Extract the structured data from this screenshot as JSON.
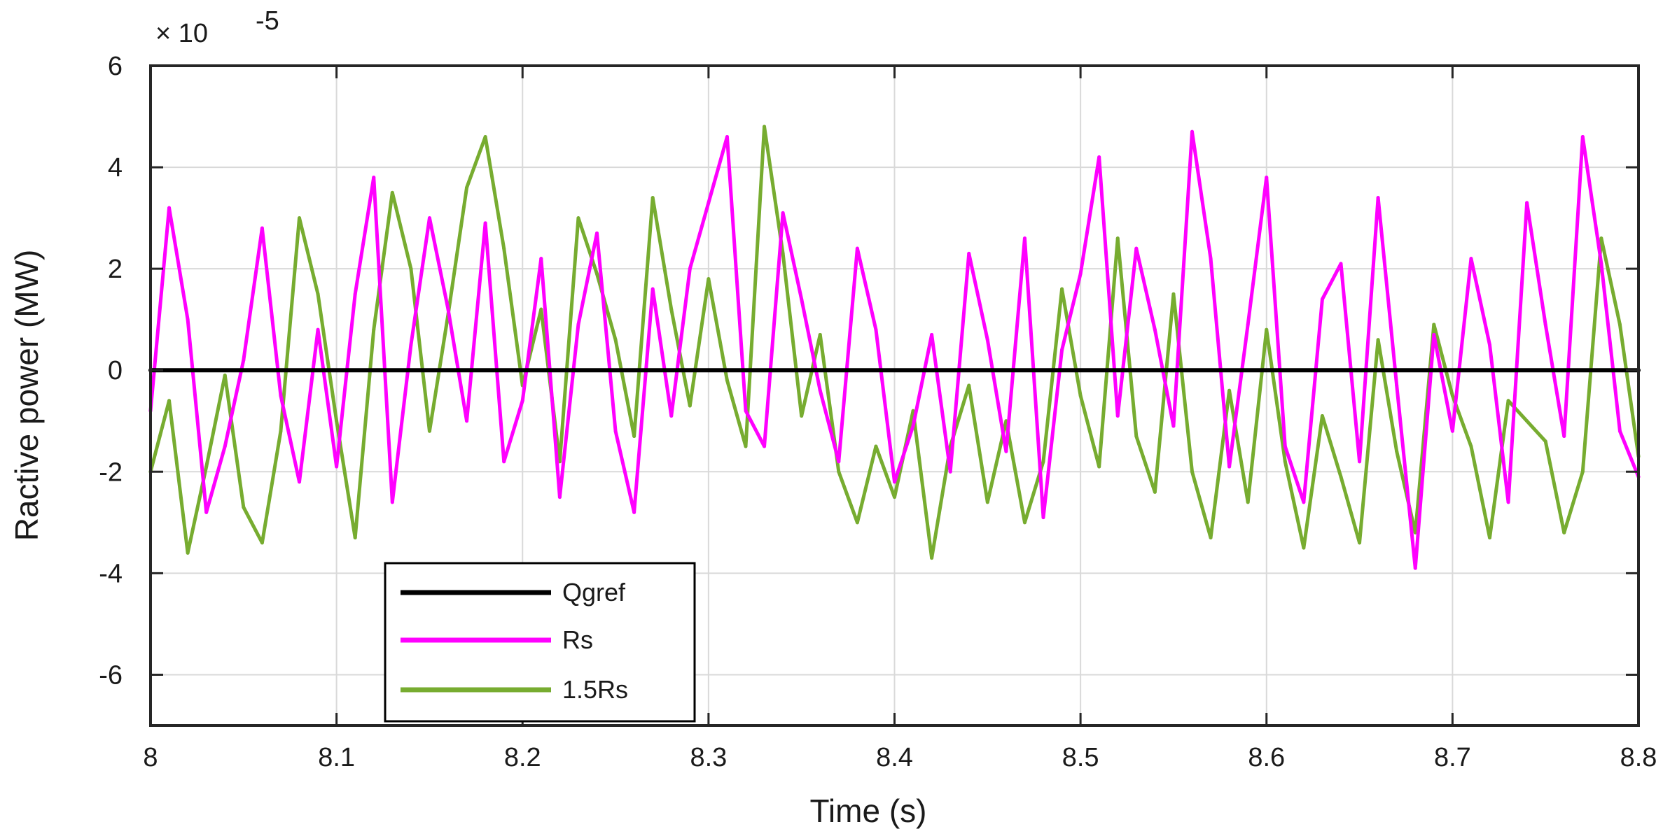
{
  "chart_data": {
    "type": "line",
    "title": "",
    "xlabel": "Time (s)",
    "ylabel": "Ractive power (MW)",
    "exponent_label": {
      "base": "× 10",
      "power": "-5"
    },
    "xlim": [
      8,
      8.8
    ],
    "ylim": [
      -7,
      6
    ],
    "xticks": [
      8,
      8.1,
      8.2,
      8.3,
      8.4,
      8.5,
      8.6,
      8.7,
      8.8
    ],
    "xtick_labels": [
      "8",
      "8.1",
      "8.2",
      "8.3",
      "8.4",
      "8.5",
      "8.6",
      "8.7",
      "8.8"
    ],
    "yticks": [
      -6,
      -4,
      -2,
      0,
      2,
      4,
      6
    ],
    "ytick_labels": [
      "-6",
      "-4",
      "-2",
      "0",
      "2",
      "4",
      "6"
    ],
    "grid": true,
    "legend_position": "bottom-left",
    "series": [
      {
        "name": "Qgref",
        "color": "#000000",
        "x": [
          8,
          8.8
        ],
        "values": [
          0,
          0
        ]
      },
      {
        "name": "Rs",
        "color": "#ff00ff",
        "x": [
          8,
          8.01,
          8.02,
          8.03,
          8.04,
          8.05,
          8.06,
          8.07,
          8.08,
          8.09,
          8.1,
          8.11,
          8.12,
          8.13,
          8.14,
          8.15,
          8.16,
          8.17,
          8.18,
          8.19,
          8.2,
          8.21,
          8.22,
          8.23,
          8.24,
          8.25,
          8.26,
          8.27,
          8.28,
          8.29,
          8.3,
          8.31,
          8.32,
          8.33,
          8.34,
          8.35,
          8.36,
          8.37,
          8.38,
          8.39,
          8.4,
          8.41,
          8.42,
          8.43,
          8.44,
          8.45,
          8.46,
          8.47,
          8.48,
          8.49,
          8.5,
          8.51,
          8.52,
          8.53,
          8.54,
          8.55,
          8.56,
          8.57,
          8.58,
          8.59,
          8.6,
          8.61,
          8.62,
          8.63,
          8.64,
          8.65,
          8.66,
          8.67,
          8.68,
          8.69,
          8.7,
          8.71,
          8.72,
          8.73,
          8.74,
          8.75,
          8.76,
          8.77,
          8.78,
          8.79,
          8.8
        ],
        "values": [
          -0.8,
          3.2,
          1.0,
          -2.8,
          -1.5,
          0.2,
          2.8,
          -0.5,
          -2.2,
          0.8,
          -1.9,
          1.5,
          3.8,
          -2.6,
          0.5,
          3.0,
          1.2,
          -1.0,
          2.9,
          -1.8,
          -0.6,
          2.2,
          -2.5,
          0.9,
          2.7,
          -1.2,
          -2.8,
          1.6,
          -0.9,
          2.0,
          3.3,
          4.6,
          -0.8,
          -1.5,
          3.1,
          1.4,
          -0.4,
          -1.8,
          2.4,
          0.8,
          -2.2,
          -1.1,
          0.7,
          -2.0,
          2.3,
          0.6,
          -1.6,
          2.6,
          -2.9,
          0.4,
          1.9,
          4.2,
          -0.9,
          2.4,
          0.8,
          -1.1,
          4.7,
          2.2,
          -1.9,
          0.9,
          3.8,
          -1.5,
          -2.6,
          1.4,
          2.1,
          -1.8,
          3.4,
          -0.3,
          -3.9,
          0.7,
          -1.2,
          2.2,
          0.5,
          -2.6,
          3.3,
          0.9,
          -1.3,
          4.6,
          2.1,
          -1.2,
          -2.1
        ]
      },
      {
        "name": "1.5Rs",
        "color": "#77ac30",
        "x": [
          8,
          8.01,
          8.02,
          8.03,
          8.04,
          8.05,
          8.06,
          8.07,
          8.08,
          8.09,
          8.1,
          8.11,
          8.12,
          8.13,
          8.14,
          8.15,
          8.16,
          8.17,
          8.18,
          8.19,
          8.2,
          8.21,
          8.22,
          8.23,
          8.24,
          8.25,
          8.26,
          8.27,
          8.28,
          8.29,
          8.3,
          8.31,
          8.32,
          8.33,
          8.34,
          8.35,
          8.36,
          8.37,
          8.38,
          8.39,
          8.4,
          8.41,
          8.42,
          8.43,
          8.44,
          8.45,
          8.46,
          8.47,
          8.48,
          8.49,
          8.5,
          8.51,
          8.52,
          8.53,
          8.54,
          8.55,
          8.56,
          8.57,
          8.58,
          8.59,
          8.6,
          8.61,
          8.62,
          8.63,
          8.64,
          8.65,
          8.66,
          8.67,
          8.68,
          8.69,
          8.7,
          8.71,
          8.72,
          8.73,
          8.74,
          8.75,
          8.76,
          8.77,
          8.78,
          8.79,
          8.8
        ],
        "values": [
          -2.0,
          -0.6,
          -3.6,
          -1.9,
          -0.1,
          -2.7,
          -3.4,
          -1.2,
          3.0,
          1.5,
          -1.0,
          -3.3,
          0.8,
          3.5,
          2.0,
          -1.2,
          1.1,
          3.6,
          4.6,
          2.4,
          -0.3,
          1.2,
          -1.8,
          3.0,
          1.9,
          0.6,
          -1.3,
          3.4,
          1.2,
          -0.7,
          1.8,
          -0.2,
          -1.5,
          4.8,
          2.3,
          -0.9,
          0.7,
          -2.0,
          -3.0,
          -1.5,
          -2.5,
          -0.8,
          -3.7,
          -1.5,
          -0.3,
          -2.6,
          -1.0,
          -3.0,
          -1.8,
          1.6,
          -0.5,
          -1.9,
          2.6,
          -1.3,
          -2.4,
          1.5,
          -2.0,
          -3.3,
          -0.4,
          -2.6,
          0.8,
          -1.8,
          -3.5,
          -0.9,
          -2.1,
          -3.4,
          0.6,
          -1.6,
          -3.2,
          0.9,
          -0.5,
          -1.5,
          -3.3,
          -0.6,
          -1.0,
          -1.4,
          -3.2,
          -2.0,
          2.6,
          0.9,
          -1.7
        ]
      }
    ]
  }
}
